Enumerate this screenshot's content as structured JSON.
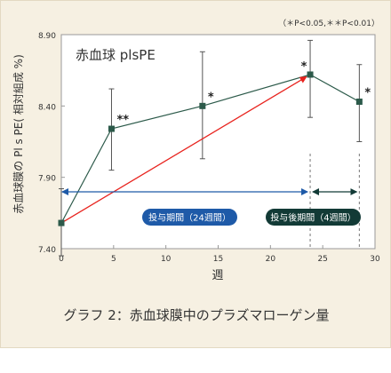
{
  "chart_data": {
    "type": "line",
    "title": "赤血球 plsPE",
    "ylabel": "赤血球膜の Pl s PE( 相対組成 %)",
    "xlabel": "週",
    "significance_note": "（＊P<0.05,＊＊P<0.01）",
    "xlim": [
      0,
      30
    ],
    "ylim": [
      7.4,
      8.9
    ],
    "xticks": [
      "0",
      "5",
      "10",
      "15",
      "20",
      "25",
      "30"
    ],
    "yticks": [
      "7.40",
      "7.90",
      "8.40",
      "8.90"
    ],
    "grid": false,
    "series": [
      {
        "x": [
          0,
          4.8,
          13.5,
          23.8,
          28.5
        ],
        "values": [
          7.58,
          8.24,
          8.4,
          8.62,
          8.43
        ],
        "error_low": [
          7.35,
          7.95,
          8.03,
          8.32,
          8.15
        ],
        "error_high": [
          7.82,
          8.52,
          8.78,
          8.86,
          8.69
        ],
        "markers": [
          "",
          "**",
          "*",
          "*",
          "*"
        ],
        "color": "#2c5a4a"
      }
    ],
    "annotations": {
      "trend_arrow": {
        "from": [
          0,
          7.58
        ],
        "to": [
          23.8,
          8.62
        ],
        "color": "#e8231e"
      },
      "administration_period": {
        "label": "投与期間（24週間）",
        "start": 0,
        "end": 23.8,
        "color": "#1e5aa8"
      },
      "post_administration_period": {
        "label": "投与後期間（4週間）",
        "start": 23.8,
        "end": 28.5,
        "color": "#123a36"
      }
    }
  },
  "caption": "グラフ 2：赤血球膜中のプラズマローゲン量"
}
